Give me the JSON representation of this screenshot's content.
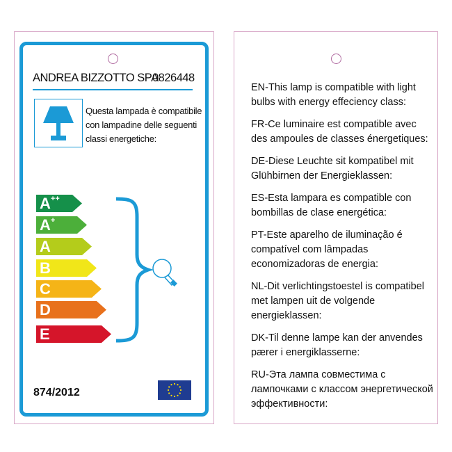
{
  "left_label": {
    "company": "ANDREA BIZZOTTO SPA",
    "code": "0826448",
    "description_it": "Questa lampada è compatibile con lampadine delle seguenti classi energetiche:",
    "classes": [
      {
        "letter": "A",
        "sup": "++",
        "color": "#15904a"
      },
      {
        "letter": "A",
        "sup": "+",
        "color": "#4caf3a"
      },
      {
        "letter": "A",
        "sup": "",
        "color": "#b4cc1b"
      },
      {
        "letter": "B",
        "sup": "",
        "color": "#f1e619"
      },
      {
        "letter": "C",
        "sup": "",
        "color": "#f5b417"
      },
      {
        "letter": "D",
        "sup": "",
        "color": "#e8711c"
      },
      {
        "letter": "E",
        "sup": "",
        "color": "#d5152a"
      }
    ],
    "regulation": "874/2012",
    "accent_color": "#1b9ad6"
  },
  "right_label": {
    "paragraphs": [
      "EN-This lamp is compatible with light bulbs with energy effeciency class:",
      "FR-Ce luminaire est compatible avec des ampoules de classes énergetiques:",
      "DE-Diese Leuchte sit kompatibel mit Glühbirnen der Energieklassen:",
      "ES-Esta lampara es compatible con bombillas de clase energética:",
      "PT-Este aparelho de iluminação é compatível com lâmpadas economizadoras de energia:",
      "NL-Dit verlichtingstoestel is compatibel met lampen uit de volgende energieklassen:",
      "DK-Til denne lampe kan der anvendes pærer i energiklasserne:",
      "RU-Эта лампа совместима с лампочками с классом энергетической эффективности:"
    ]
  }
}
